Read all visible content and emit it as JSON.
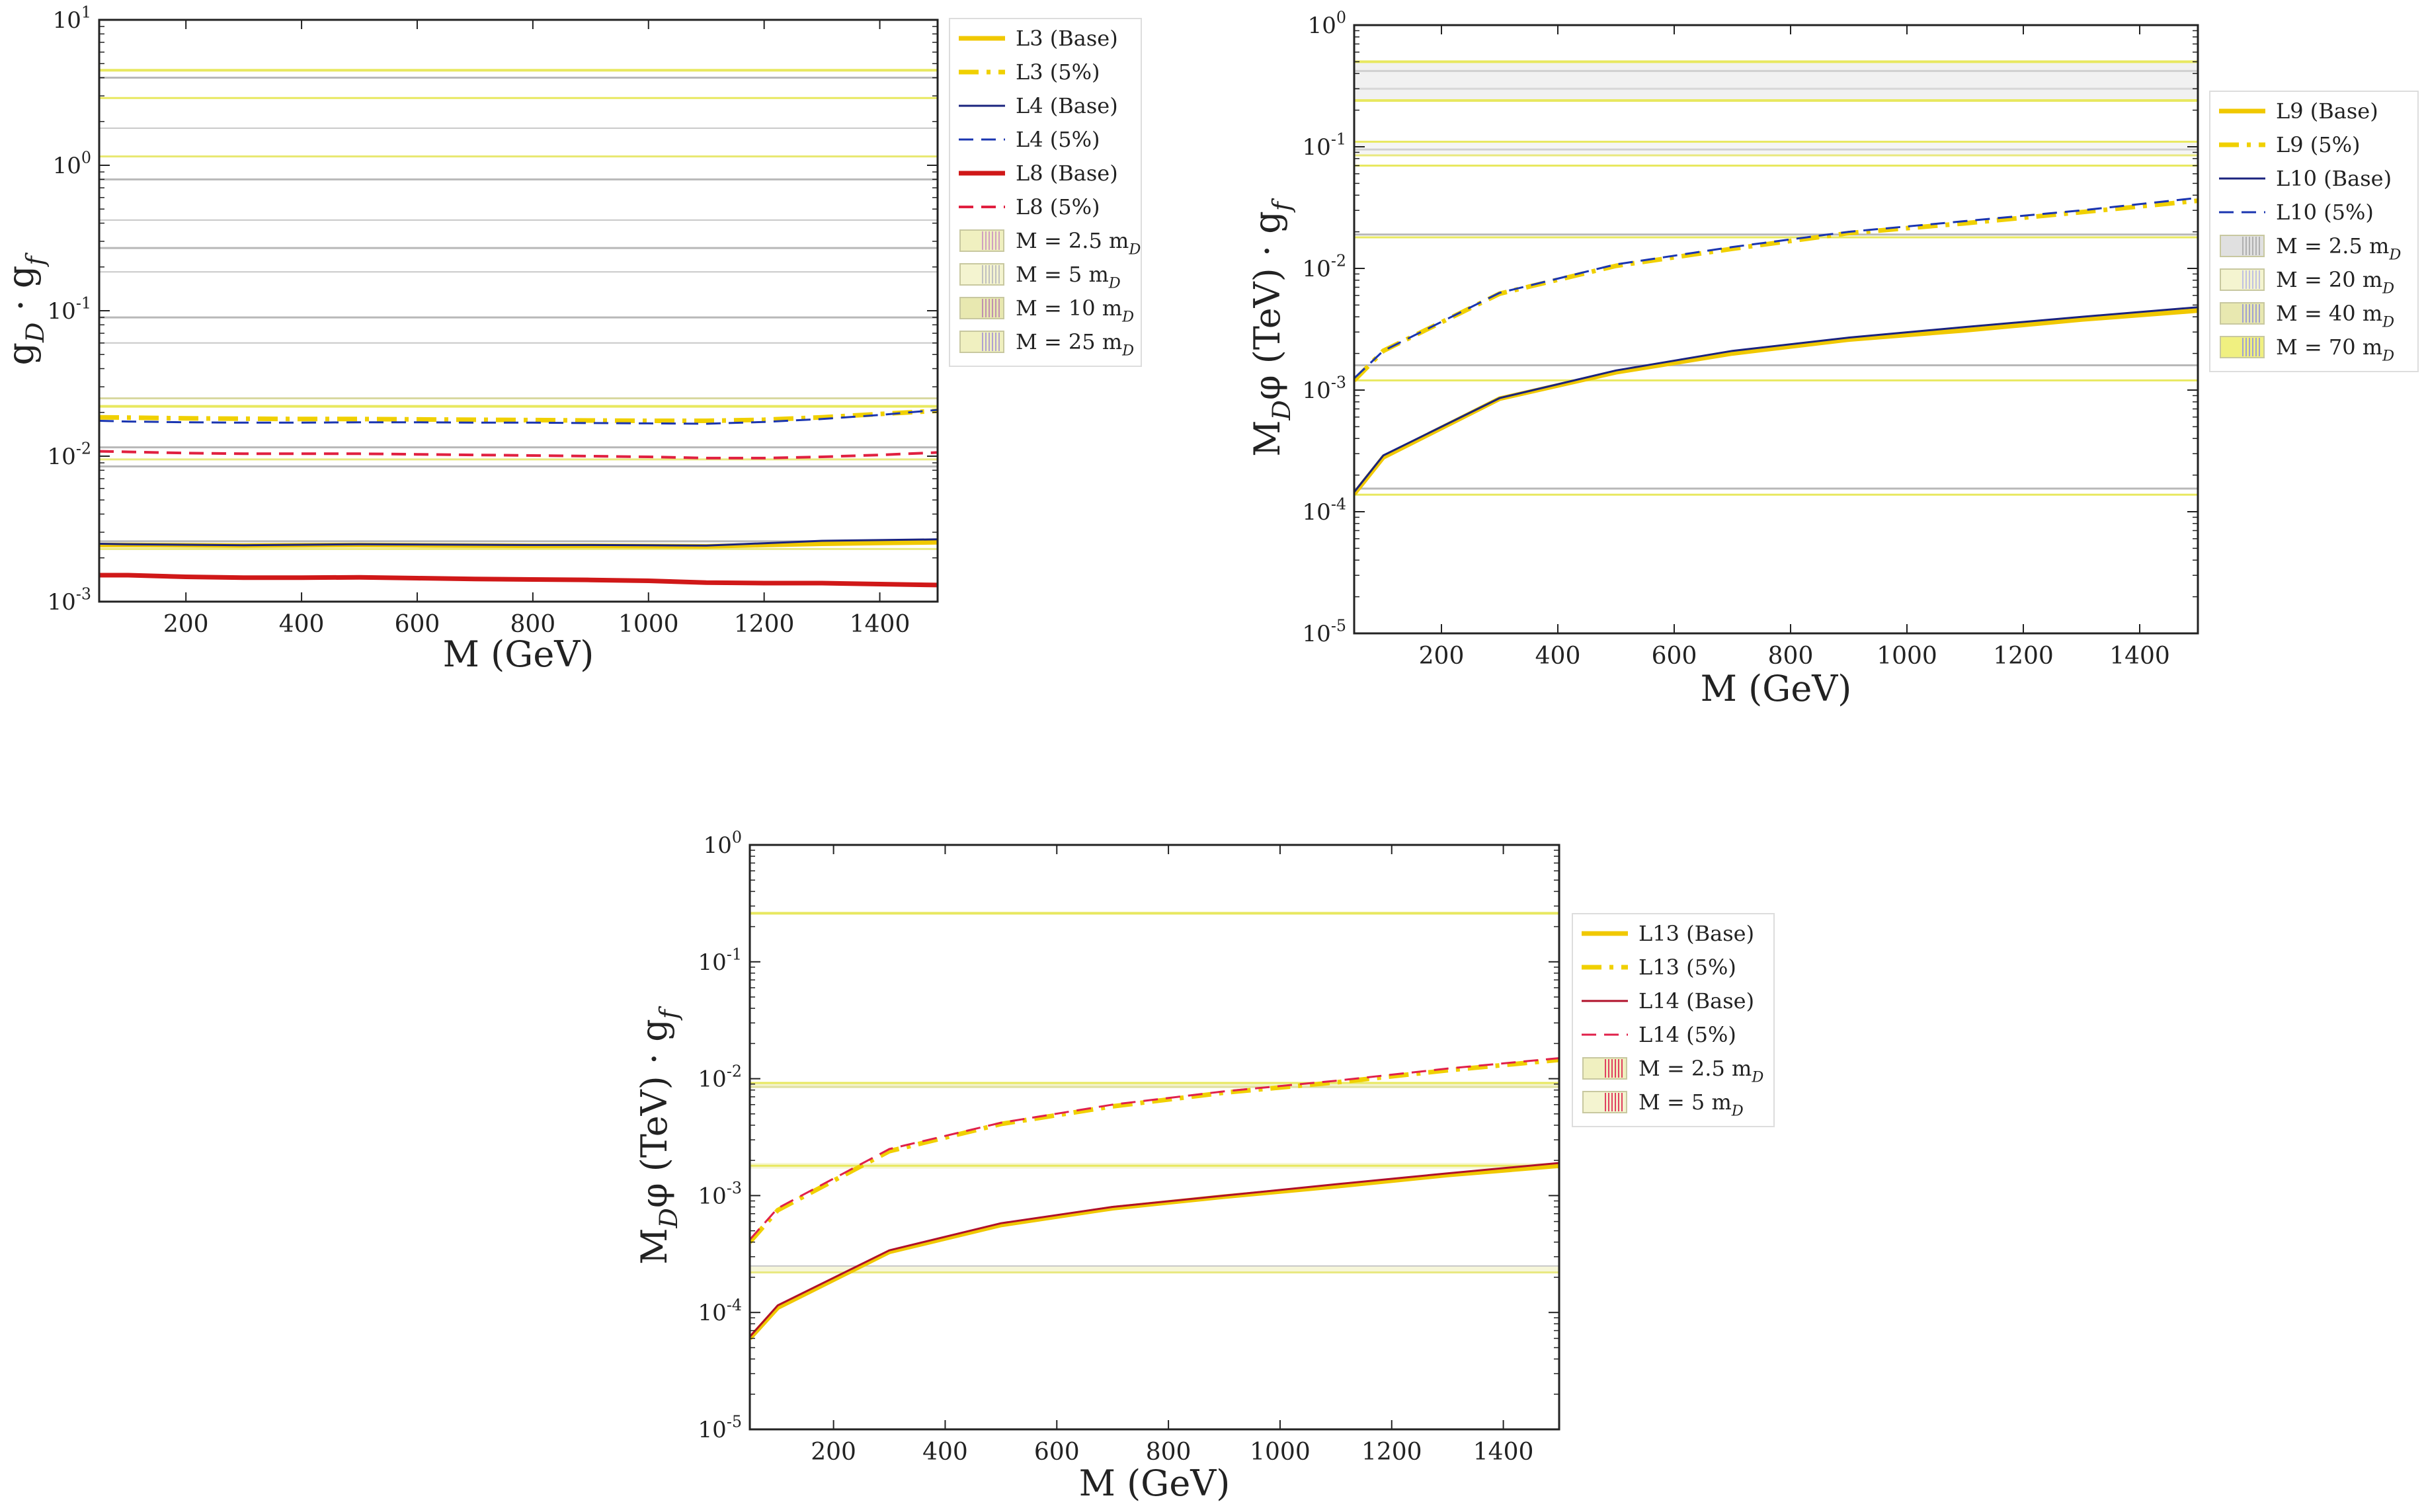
{
  "chart_data": [
    {
      "type": "line",
      "yscale": "log",
      "xlabel": "M (GeV)",
      "ylabel": "g_D · g_f",
      "xlim": [
        50,
        1500
      ],
      "ylim": [
        0.001,
        10
      ],
      "xticks": [
        200,
        400,
        600,
        800,
        1000,
        1200,
        1400
      ],
      "yticks": [
        {
          "value": 0.001,
          "label": "10^-3"
        },
        {
          "value": 0.01,
          "label": "10^-2"
        },
        {
          "value": 0.1,
          "label": "10^-1"
        },
        {
          "value": 1,
          "label": "10^0"
        },
        {
          "value": 10,
          "label": "10^1"
        }
      ],
      "x": [
        50,
        100,
        200,
        300,
        400,
        500,
        600,
        700,
        800,
        900,
        1000,
        1100,
        1200,
        1300,
        1400,
        1500
      ],
      "series": [
        {
          "name": "L3 (Base)",
          "color": "#f0c800",
          "style": "solid",
          "width": 7,
          "values": [
            0.00245,
            0.00245,
            0.00244,
            0.00243,
            0.00244,
            0.00245,
            0.00244,
            0.00243,
            0.00242,
            0.00242,
            0.00241,
            0.0024,
            0.00245,
            0.0025,
            0.00253,
            0.00256
          ]
        },
        {
          "name": "L3 (5%)",
          "color": "#f0d000",
          "style": "dashdot",
          "width": 7,
          "values": [
            0.0185,
            0.0184,
            0.0182,
            0.0181,
            0.018,
            0.018,
            0.0179,
            0.0178,
            0.0177,
            0.0176,
            0.0175,
            0.0175,
            0.0178,
            0.0185,
            0.0195,
            0.0205
          ]
        },
        {
          "name": "L4 (Base)",
          "color": "#1a237e",
          "style": "solid",
          "width": 3,
          "values": [
            0.0025,
            0.00248,
            0.00246,
            0.00244,
            0.00246,
            0.00248,
            0.00247,
            0.00246,
            0.00245,
            0.00245,
            0.00244,
            0.00243,
            0.00252,
            0.00262,
            0.00265,
            0.00268
          ]
        },
        {
          "name": "L4 (5%)",
          "color": "#1a35b0",
          "style": "dashed",
          "width": 3,
          "values": [
            0.0175,
            0.0173,
            0.0171,
            0.017,
            0.017,
            0.0171,
            0.0171,
            0.017,
            0.017,
            0.0169,
            0.0168,
            0.0167,
            0.0172,
            0.018,
            0.0192,
            0.0208
          ]
        },
        {
          "name": "L8 (Base)",
          "color": "#d01818",
          "style": "solid",
          "width": 7,
          "values": [
            0.00152,
            0.00152,
            0.00148,
            0.00146,
            0.00146,
            0.00147,
            0.00145,
            0.00143,
            0.00142,
            0.00141,
            0.00139,
            0.00135,
            0.00134,
            0.00134,
            0.00132,
            0.0013
          ]
        },
        {
          "name": "L8 (5%)",
          "color": "#e02040",
          "style": "dashed",
          "width": 4,
          "values": [
            0.0108,
            0.0107,
            0.0105,
            0.0104,
            0.0104,
            0.0104,
            0.0103,
            0.0102,
            0.0101,
            0.01,
            0.0099,
            0.0097,
            0.0097,
            0.0099,
            0.0102,
            0.0106
          ]
        }
      ],
      "hlines": [
        {
          "y": 4.5,
          "color": "#e8e860",
          "width": 4
        },
        {
          "y": 4.0,
          "color": "#b8b8b8",
          "width": 3
        },
        {
          "y": 2.9,
          "color": "#e8e860",
          "width": 3
        },
        {
          "y": 1.8,
          "color": "#c8c8c8",
          "width": 2
        },
        {
          "y": 1.15,
          "color": "#e8e870",
          "width": 3
        },
        {
          "y": 0.8,
          "color": "#b8b8b8",
          "width": 3
        },
        {
          "y": 0.42,
          "color": "#c8c8c8",
          "width": 2
        },
        {
          "y": 0.27,
          "color": "#b8b8b8",
          "width": 3
        },
        {
          "y": 0.185,
          "color": "#c8c8c8",
          "width": 2
        },
        {
          "y": 0.09,
          "color": "#b8b8b8",
          "width": 3
        },
        {
          "y": 0.06,
          "color": "#c8c8c8",
          "width": 2
        },
        {
          "y": 0.025,
          "color": "#d8d8a0",
          "width": 3
        },
        {
          "y": 0.022,
          "color": "#e8e860",
          "width": 4
        },
        {
          "y": 0.0115,
          "color": "#b8b8b8",
          "width": 3
        },
        {
          "y": 0.0095,
          "color": "#e8e880",
          "width": 3
        },
        {
          "y": 0.0085,
          "color": "#b8b8b8",
          "width": 3
        },
        {
          "y": 0.0026,
          "color": "#b8b8b8",
          "width": 3
        },
        {
          "y": 0.0023,
          "color": "#e8e880",
          "width": 3
        }
      ],
      "legend": {
        "placement": "outside-right",
        "entries": [
          {
            "label": "L3 (Base)",
            "kind": "line",
            "series": "L3 (Base)"
          },
          {
            "label": "L3 (5%)",
            "kind": "line",
            "series": "L3 (5%)"
          },
          {
            "label": "L4 (Base)",
            "kind": "line",
            "series": "L4 (Base)"
          },
          {
            "label": "L4 (5%)",
            "kind": "line",
            "series": "L4 (5%)"
          },
          {
            "label": "L8 (Base)",
            "kind": "line",
            "series": "L8 (Base)"
          },
          {
            "label": "L8 (5%)",
            "kind": "line",
            "series": "L8 (5%)"
          },
          {
            "label": "M = 2.5 m_D",
            "kind": "patch",
            "fill": "#f0f0c0",
            "hatch": "#d0a0c0"
          },
          {
            "label": "M = 5 m_D",
            "kind": "patch",
            "fill": "#f4f4d0",
            "hatch": "#c0c0c0"
          },
          {
            "label": "M = 10 m_D",
            "kind": "patch",
            "fill": "#e8e8b0",
            "hatch": "#c090b0"
          },
          {
            "label": "M = 25 m_D",
            "kind": "patch",
            "fill": "#f0f0c0",
            "hatch": "#b0a0d0"
          }
        ]
      }
    },
    {
      "type": "line",
      "yscale": "log",
      "xlabel": "M (GeV)",
      "ylabel": "M_Dφ (TeV) · g_f",
      "xlim": [
        50,
        1500
      ],
      "ylim": [
        1e-05,
        1
      ],
      "xticks": [
        200,
        400,
        600,
        800,
        1000,
        1200,
        1400
      ],
      "yticks": [
        {
          "value": 1e-05,
          "label": "10^-5"
        },
        {
          "value": 0.0001,
          "label": "10^-4"
        },
        {
          "value": 0.001,
          "label": "10^-3"
        },
        {
          "value": 0.01,
          "label": "10^-2"
        },
        {
          "value": 0.1,
          "label": "10^-1"
        },
        {
          "value": 1,
          "label": "10^0"
        }
      ],
      "x": [
        50,
        100,
        300,
        500,
        700,
        900,
        1100,
        1300,
        1500
      ],
      "series": [
        {
          "name": "L9 (Base)",
          "color": "#f0c800",
          "style": "solid",
          "width": 7,
          "values": [
            0.00014,
            0.00028,
            0.00085,
            0.0014,
            0.002,
            0.0026,
            0.0031,
            0.0038,
            0.0045
          ]
        },
        {
          "name": "L9 (5%)",
          "color": "#f0d000",
          "style": "dashdot",
          "width": 7,
          "values": [
            0.0012,
            0.0021,
            0.0062,
            0.0105,
            0.0145,
            0.0195,
            0.0235,
            0.029,
            0.036
          ]
        },
        {
          "name": "L10 (Base)",
          "color": "#1a237e",
          "style": "solid",
          "width": 3,
          "values": [
            0.000145,
            0.00029,
            0.00086,
            0.00145,
            0.0021,
            0.0027,
            0.0033,
            0.004,
            0.0048
          ]
        },
        {
          "name": "L10 (5%)",
          "color": "#1a35b0",
          "style": "dashed",
          "width": 3,
          "values": [
            0.00125,
            0.0021,
            0.0063,
            0.0108,
            0.015,
            0.02,
            0.0245,
            0.03,
            0.038
          ]
        }
      ],
      "hlines": [
        {
          "y": 0.5,
          "color": "#e8e860",
          "width": 4
        },
        {
          "y": 0.42,
          "color": "#d0d0d0",
          "width": 3
        },
        {
          "y": 0.3,
          "color": "#d8d8d8",
          "width": 3
        },
        {
          "y": 0.24,
          "color": "#e8e860",
          "width": 4
        },
        {
          "y": 0.11,
          "color": "#e8e860",
          "width": 3
        },
        {
          "y": 0.095,
          "color": "#d0d0d0",
          "width": 3
        },
        {
          "y": 0.085,
          "color": "#e8e880",
          "width": 3
        },
        {
          "y": 0.07,
          "color": "#e8e860",
          "width": 3
        },
        {
          "y": 0.019,
          "color": "#b8b8b8",
          "width": 3
        },
        {
          "y": 0.018,
          "color": "#e8e860",
          "width": 3
        },
        {
          "y": 0.0016,
          "color": "#b8b8b8",
          "width": 3
        },
        {
          "y": 0.0012,
          "color": "#e8e860",
          "width": 3
        },
        {
          "y": 0.000155,
          "color": "#b8b8b8",
          "width": 3
        },
        {
          "y": 0.000138,
          "color": "#e8e860",
          "width": 3
        }
      ],
      "bands": [
        {
          "y0": 0.24,
          "y1": 0.5,
          "fill": "#e8e8e8",
          "opacity": 0.6
        },
        {
          "y0": 0.085,
          "y1": 0.11,
          "fill": "#eeeeee",
          "opacity": 0.6
        }
      ],
      "legend": {
        "placement": "outside-right",
        "entries": [
          {
            "label": "L9 (Base)",
            "kind": "line",
            "series": "L9 (Base)"
          },
          {
            "label": "L9 (5%)",
            "kind": "line",
            "series": "L9 (5%)"
          },
          {
            "label": "L10 (Base)",
            "kind": "line",
            "series": "L10 (Base)"
          },
          {
            "label": "L10 (5%)",
            "kind": "line",
            "series": "L10 (5%)"
          },
          {
            "label": "M = 2.5 m_D",
            "kind": "patch",
            "fill": "#e0e0e0",
            "hatch": "#b0b0b0"
          },
          {
            "label": "M = 20 m_D",
            "kind": "patch",
            "fill": "#f4f4d0",
            "hatch": "#c0c0e0"
          },
          {
            "label": "M = 40 m_D",
            "kind": "patch",
            "fill": "#e8e8b0",
            "hatch": "#a0a0d0"
          },
          {
            "label": "M = 70 m_D",
            "kind": "patch",
            "fill": "#f0f080",
            "hatch": "#a0a0d0"
          }
        ]
      }
    },
    {
      "type": "line",
      "yscale": "log",
      "xlabel": "M (GeV)",
      "ylabel": "M_Dφ (TeV) · g_f",
      "xlim": [
        50,
        1500
      ],
      "ylim": [
        1e-05,
        1
      ],
      "xticks": [
        200,
        400,
        600,
        800,
        1000,
        1200,
        1400
      ],
      "yticks": [
        {
          "value": 1e-05,
          "label": "10^-5"
        },
        {
          "value": 0.0001,
          "label": "10^-4"
        },
        {
          "value": 0.001,
          "label": "10^-3"
        },
        {
          "value": 0.01,
          "label": "10^-2"
        },
        {
          "value": 0.1,
          "label": "10^-1"
        },
        {
          "value": 1,
          "label": "10^0"
        }
      ],
      "x": [
        50,
        100,
        300,
        500,
        700,
        900,
        1100,
        1300,
        1500
      ],
      "series": [
        {
          "name": "L13 (Base)",
          "color": "#f0c800",
          "style": "solid",
          "width": 7,
          "values": [
            6e-05,
            0.00011,
            0.00033,
            0.00056,
            0.00078,
            0.00098,
            0.0012,
            0.0015,
            0.0018
          ]
        },
        {
          "name": "L13 (5%)",
          "color": "#f0d000",
          "style": "dashdot",
          "width": 7,
          "values": [
            0.0004,
            0.00075,
            0.0024,
            0.0041,
            0.0058,
            0.0076,
            0.0093,
            0.0118,
            0.0145
          ]
        },
        {
          "name": "L14 (Base)",
          "color": "#b0102a",
          "style": "solid",
          "width": 3,
          "values": [
            6.2e-05,
            0.000115,
            0.00034,
            0.00058,
            0.0008,
            0.001,
            0.00125,
            0.00155,
            0.0019
          ]
        },
        {
          "name": "L14 (5%)",
          "color": "#e0204a",
          "style": "dashed",
          "width": 3,
          "values": [
            0.00042,
            0.00078,
            0.0025,
            0.0042,
            0.006,
            0.0078,
            0.0096,
            0.0122,
            0.015
          ]
        }
      ],
      "hlines": [
        {
          "y": 0.26,
          "color": "#e8e860",
          "width": 4
        },
        {
          "y": 0.0092,
          "color": "#e8e860",
          "width": 3
        },
        {
          "y": 0.0085,
          "color": "#e0e0a0",
          "width": 3
        },
        {
          "y": 0.0018,
          "color": "#e8e860",
          "width": 3
        },
        {
          "y": 0.00025,
          "color": "#c8c8c8",
          "width": 2
        },
        {
          "y": 0.00022,
          "color": "#e8e880",
          "width": 3
        }
      ],
      "bands": [
        {
          "y0": 0.0085,
          "y1": 0.0092,
          "fill": "#f0f0c0",
          "opacity": 0.8
        },
        {
          "y0": 0.0017,
          "y1": 0.0019,
          "fill": "#f4f4c8",
          "opacity": 0.8
        },
        {
          "y0": 0.00022,
          "y1": 0.00025,
          "fill": "#f4f4d0",
          "opacity": 0.8
        }
      ],
      "legend": {
        "placement": "outside-right",
        "entries": [
          {
            "label": "L13 (Base)",
            "kind": "line",
            "series": "L13 (Base)"
          },
          {
            "label": "L13 (5%)",
            "kind": "line",
            "series": "L13 (5%)"
          },
          {
            "label": "L14 (Base)",
            "kind": "line",
            "series": "L14 (Base)"
          },
          {
            "label": "L14 (5%)",
            "kind": "line",
            "series": "L14 (5%)"
          },
          {
            "label": "M = 2.5 m_D",
            "kind": "patch",
            "fill": "#f0f0c0",
            "hatch": "#e04060"
          },
          {
            "label": "M = 5 m_D",
            "kind": "patch",
            "fill": "#f4f4d0",
            "hatch": "#e04060"
          }
        ]
      }
    }
  ]
}
